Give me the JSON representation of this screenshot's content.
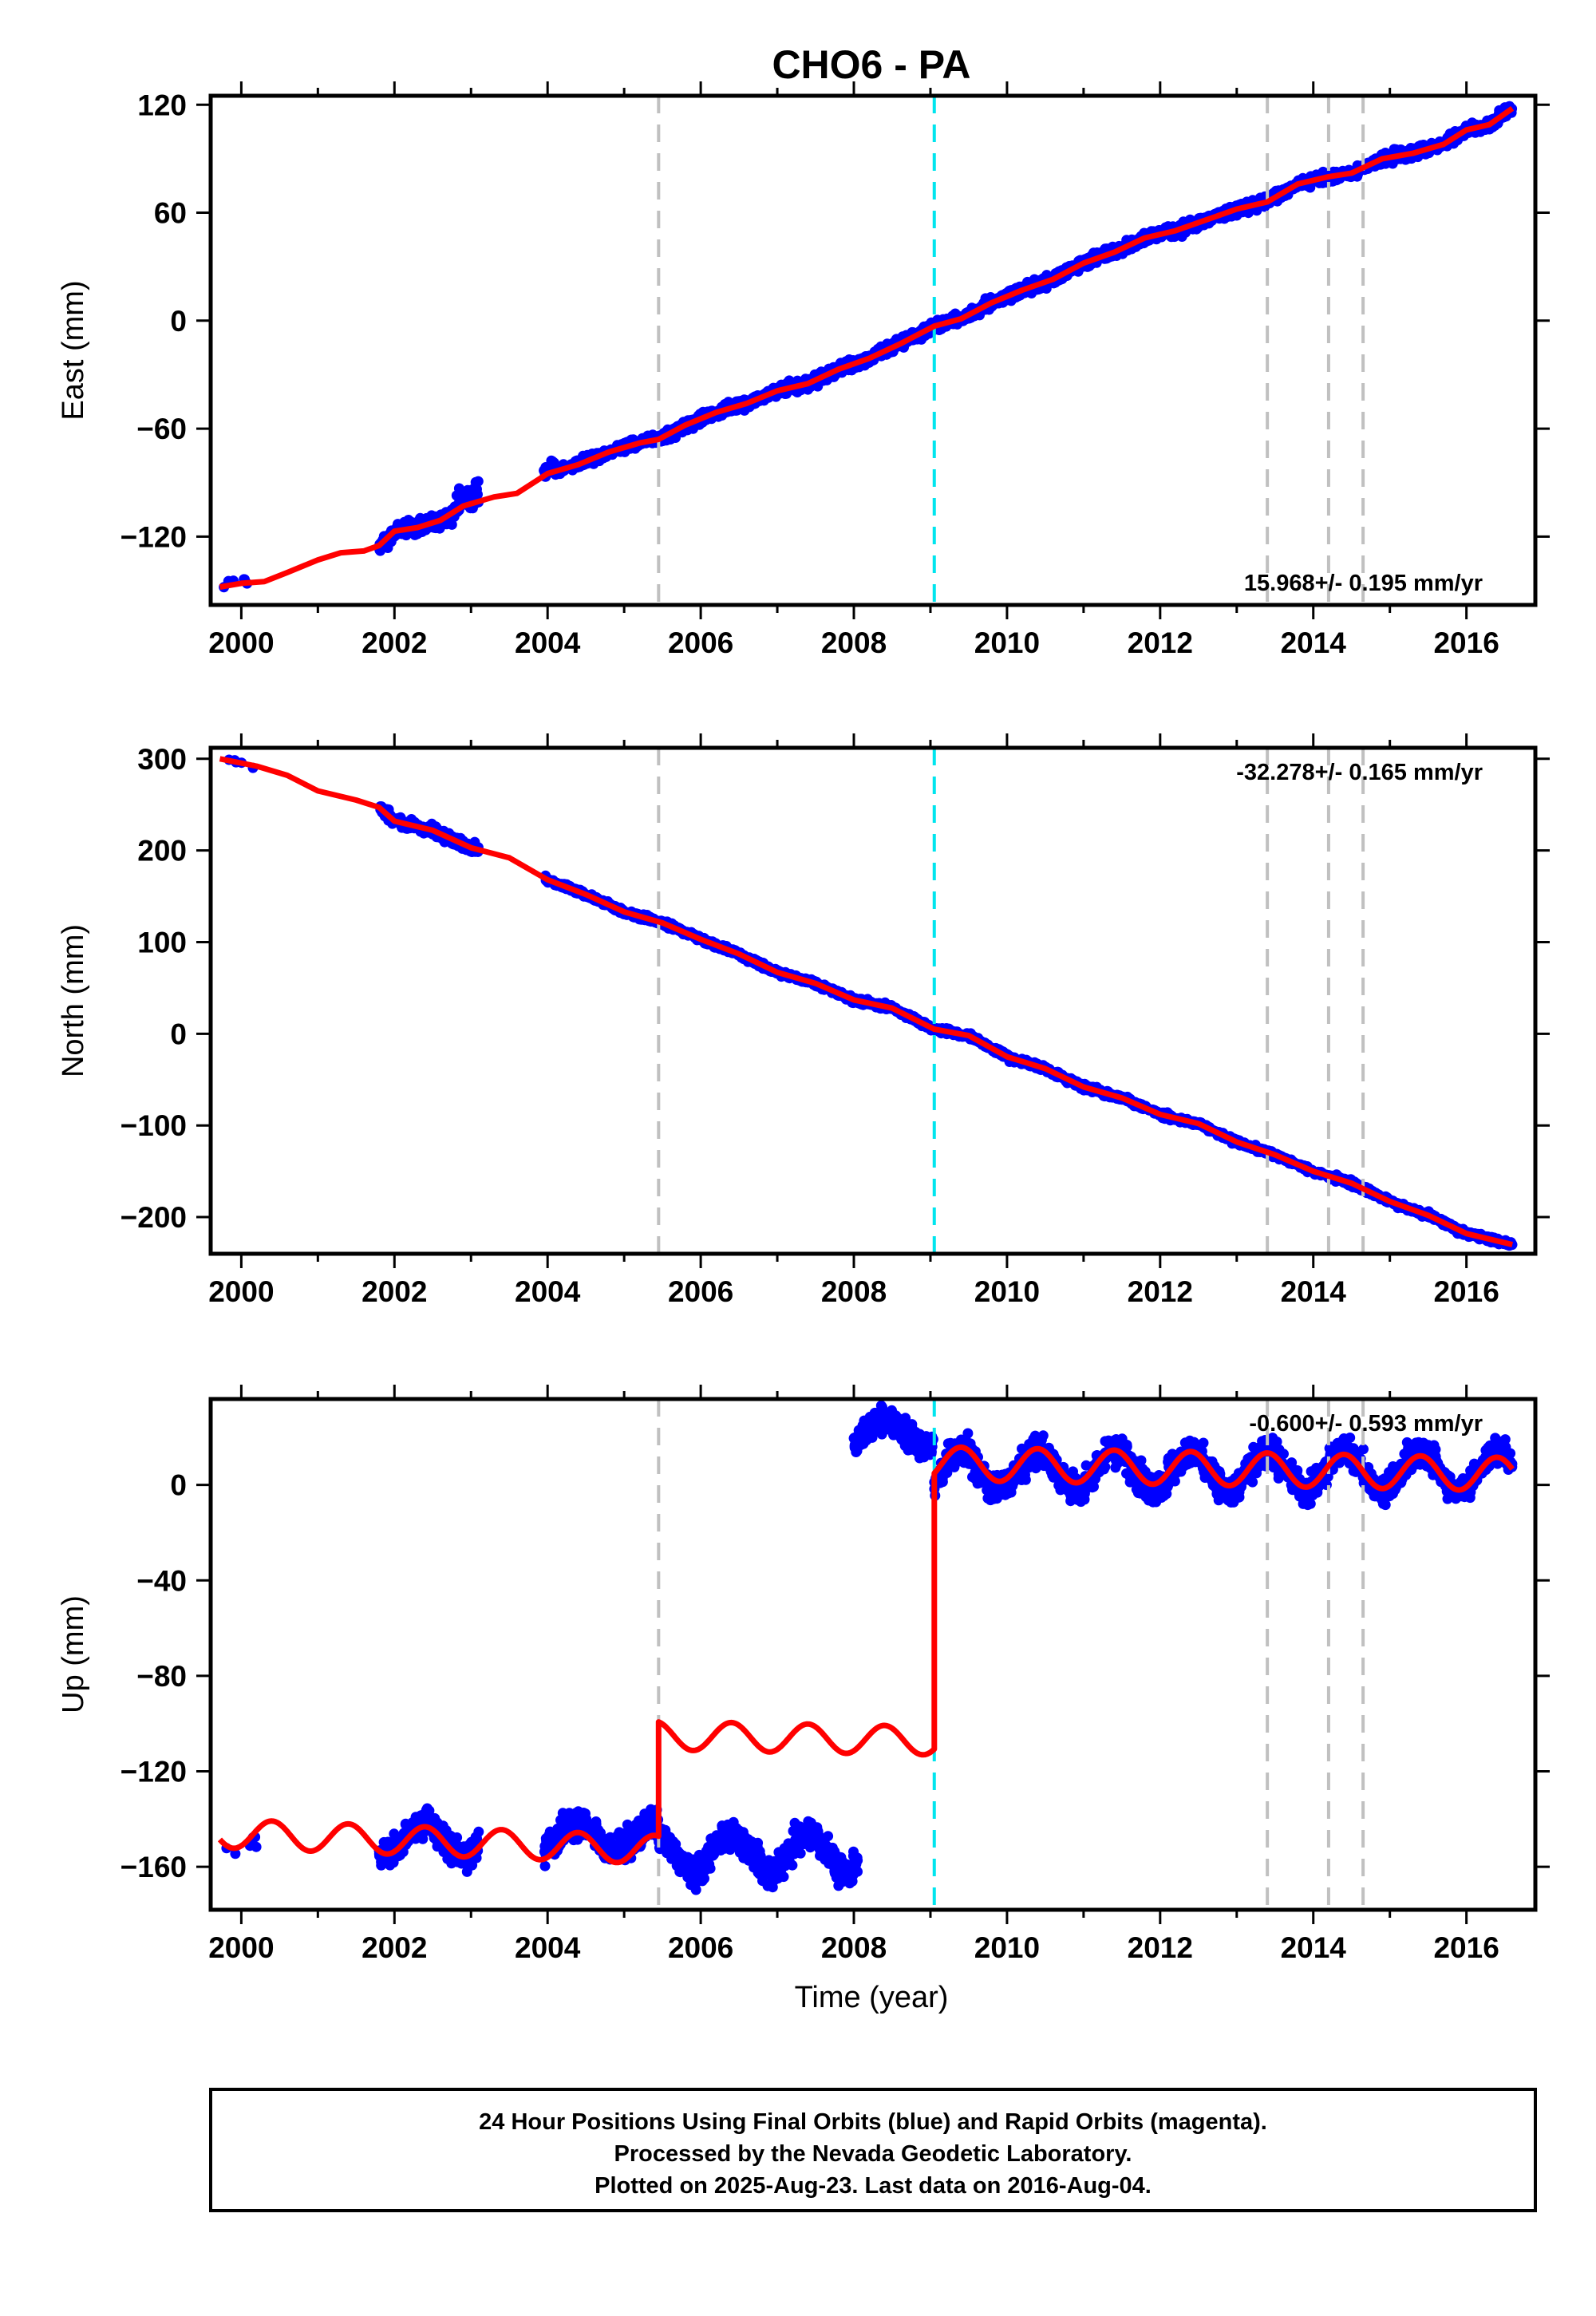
{
  "title": "CHO6 - PA",
  "xlabel": "Time (year)",
  "footer": [
    "24 Hour Positions Using Final Orbits (blue) and Rapid Orbits (magenta).",
    "Processed by the Nevada Geodetic Laboratory.",
    "Plotted on 2025-Aug-23. Last data on 2016-Aug-04."
  ],
  "colors": {
    "data": "#0000ff",
    "model": "#ff0000",
    "event_gray": "#c0c0c0",
    "event_cyan": "#00e5ee",
    "frame": "#000000"
  },
  "chart_data": [
    {
      "type": "scatter",
      "component": "East",
      "ylabel": "East (mm)",
      "xlim": [
        1999.6,
        2016.9
      ],
      "ylim": [
        -158,
        125
      ],
      "xticks": [
        2000,
        2002,
        2004,
        2006,
        2008,
        2010,
        2012,
        2014,
        2016
      ],
      "yticks": [
        -120,
        -60,
        0,
        60,
        120
      ],
      "rate_label": "15.968+/- 0.195 mm/yr",
      "vlines_gray": [
        2005.45,
        2013.4,
        2014.2,
        2014.65
      ],
      "vlines_cyan": [
        2009.05
      ],
      "model": [
        [
          1999.72,
          -148
        ],
        [
          2000.0,
          -146
        ],
        [
          2000.3,
          -145
        ],
        [
          2000.6,
          -140
        ],
        [
          2001.0,
          -133
        ],
        [
          2001.3,
          -129
        ],
        [
          2001.6,
          -128
        ],
        [
          2001.8,
          -125
        ],
        [
          2002.0,
          -117
        ],
        [
          2002.3,
          -115
        ],
        [
          2002.6,
          -111
        ],
        [
          2002.9,
          -103
        ],
        [
          2003.3,
          -98
        ],
        [
          2003.6,
          -96
        ],
        [
          2004.0,
          -85
        ],
        [
          2004.4,
          -80
        ],
        [
          2004.8,
          -73
        ],
        [
          2005.2,
          -68
        ],
        [
          2005.45,
          -66
        ],
        [
          2005.8,
          -58
        ],
        [
          2006.2,
          -51
        ],
        [
          2006.6,
          -46
        ],
        [
          2007.0,
          -39
        ],
        [
          2007.4,
          -35
        ],
        [
          2007.8,
          -27
        ],
        [
          2008.2,
          -21
        ],
        [
          2008.6,
          -13
        ],
        [
          2009.05,
          -3
        ],
        [
          2009.4,
          1
        ],
        [
          2009.8,
          10
        ],
        [
          2010.2,
          17
        ],
        [
          2010.6,
          23
        ],
        [
          2011.0,
          32
        ],
        [
          2011.4,
          38
        ],
        [
          2011.8,
          46
        ],
        [
          2012.2,
          50
        ],
        [
          2012.6,
          56
        ],
        [
          2013.0,
          62
        ],
        [
          2013.4,
          66
        ],
        [
          2013.8,
          76
        ],
        [
          2014.2,
          80
        ],
        [
          2014.5,
          82
        ],
        [
          2014.9,
          90
        ],
        [
          2015.3,
          93
        ],
        [
          2015.7,
          98
        ],
        [
          2016.0,
          106
        ],
        [
          2016.3,
          109
        ],
        [
          2016.6,
          118
        ]
      ],
      "data_segments": [
        {
          "start": 1999.72,
          "end": 2000.2,
          "n": 6,
          "scatter": 4
        },
        {
          "start": 2001.8,
          "end": 2003.1,
          "n": 260,
          "scatter": 4,
          "spikes": [
            [
              2002.8,
              2003.1,
              9
            ]
          ]
        },
        {
          "start": 2003.95,
          "end": 2005.45,
          "n": 260,
          "scatter": 3,
          "spikes": [
            [
              2003.95,
              2004.1,
              5
            ]
          ]
        },
        {
          "start": 2005.45,
          "end": 2016.6,
          "n": 2000,
          "scatter": 3
        }
      ]
    },
    {
      "type": "scatter",
      "component": "North",
      "ylabel": "North (mm)",
      "xlim": [
        1999.6,
        2016.9
      ],
      "ylim": [
        -240,
        312
      ],
      "xticks": [
        2000,
        2002,
        2004,
        2006,
        2008,
        2010,
        2012,
        2014,
        2016
      ],
      "yticks": [
        -200,
        -100,
        0,
        100,
        200,
        300
      ],
      "rate_label": "-32.278+/- 0.165 mm/yr",
      "vlines_gray": [
        2005.45,
        2013.4,
        2014.2,
        2014.65
      ],
      "vlines_cyan": [
        2009.05
      ],
      "model": [
        [
          1999.72,
          300
        ],
        [
          2000.2,
          292
        ],
        [
          2000.6,
          282
        ],
        [
          2001.0,
          265
        ],
        [
          2001.5,
          255
        ],
        [
          2001.8,
          247
        ],
        [
          2002.0,
          232
        ],
        [
          2002.5,
          222
        ],
        [
          2003.0,
          203
        ],
        [
          2003.5,
          192
        ],
        [
          2004.0,
          168
        ],
        [
          2004.5,
          152
        ],
        [
          2005.0,
          133
        ],
        [
          2005.5,
          121
        ],
        [
          2006.0,
          103
        ],
        [
          2006.5,
          87
        ],
        [
          2007.0,
          67
        ],
        [
          2007.5,
          55
        ],
        [
          2008.0,
          37
        ],
        [
          2008.5,
          28
        ],
        [
          2009.05,
          5
        ],
        [
          2009.5,
          -2
        ],
        [
          2010.0,
          -25
        ],
        [
          2010.5,
          -38
        ],
        [
          2011.0,
          -58
        ],
        [
          2011.5,
          -70
        ],
        [
          2012.0,
          -88
        ],
        [
          2012.5,
          -98
        ],
        [
          2013.0,
          -118
        ],
        [
          2013.5,
          -132
        ],
        [
          2014.0,
          -150
        ],
        [
          2014.5,
          -163
        ],
        [
          2015.0,
          -183
        ],
        [
          2015.5,
          -198
        ],
        [
          2016.0,
          -218
        ],
        [
          2016.6,
          -230
        ]
      ],
      "data_segments": [
        {
          "start": 1999.72,
          "end": 2000.2,
          "n": 6,
          "scatter": 4
        },
        {
          "start": 2001.8,
          "end": 2003.1,
          "n": 260,
          "scatter": 5
        },
        {
          "start": 2003.95,
          "end": 2005.45,
          "n": 260,
          "scatter": 3
        },
        {
          "start": 2005.45,
          "end": 2016.6,
          "n": 2000,
          "scatter": 3
        }
      ]
    },
    {
      "type": "scatter",
      "component": "Up",
      "ylabel": "Up (mm)",
      "xlim": [
        1999.6,
        2016.9
      ],
      "ylim": [
        -178,
        36
      ],
      "xticks": [
        2000,
        2002,
        2004,
        2006,
        2008,
        2010,
        2012,
        2014,
        2016
      ],
      "yticks": [
        -160,
        -120,
        -80,
        -40,
        0
      ],
      "rate_label": "-0.600+/- 0.593 mm/yr",
      "vlines_gray": [
        2005.45,
        2013.4,
        2014.2,
        2014.65
      ],
      "vlines_cyan": [
        2009.05
      ],
      "model_segments": [
        {
          "start": 1999.72,
          "end": 2005.45,
          "base": -146,
          "trend": -1.2,
          "amp": 6
        },
        {
          "start": 2005.45,
          "end": 2009.05,
          "base": -105,
          "trend": -0.6,
          "amp": 6
        },
        {
          "start": 2009.05,
          "end": 2016.6,
          "base": 9,
          "trend": -0.6,
          "amp": 7
        }
      ],
      "data_segments": [
        {
          "start": 1999.72,
          "end": 2000.2,
          "n": 6,
          "base": -150,
          "amp": 4,
          "scatter": 6
        },
        {
          "start": 2001.8,
          "end": 2003.1,
          "n": 280,
          "base": -148,
          "amp": 7,
          "scatter": 6
        },
        {
          "start": 2003.95,
          "end": 2005.45,
          "n": 300,
          "base": -147,
          "amp": 6,
          "scatter": 6
        },
        {
          "start": 2005.45,
          "end": 2008.05,
          "n": 550,
          "base": -154,
          "amp": 8,
          "scatter": 6
        },
        {
          "start": 2008.0,
          "end": 2009.05,
          "n": 260,
          "base": 22,
          "amp": 6,
          "scatter": 5
        },
        {
          "start": 2009.05,
          "end": 2016.6,
          "n": 1500,
          "base": 6,
          "amp": 8,
          "scatter": 6
        }
      ]
    }
  ]
}
